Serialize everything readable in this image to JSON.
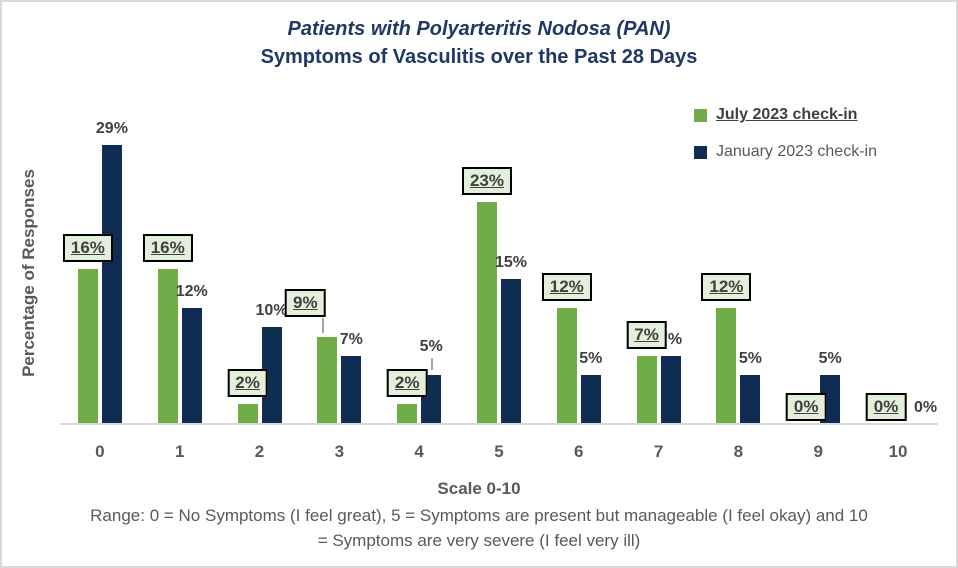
{
  "title": {
    "line1": "Patients with Polyarteritis Nodosa (PAN)",
    "line2": "Symptoms of Vasculitis over the Past 28 Days"
  },
  "legend": {
    "items": [
      {
        "label": "July 2023 check-in",
        "color": "#70AD47",
        "underlined": true
      },
      {
        "label": "January 2023 check-in",
        "color": "#0F2D52",
        "underlined": false
      }
    ]
  },
  "colors": {
    "title_navy": "#1F3864",
    "july_green": "#70AD47",
    "january_navy": "#0F2D52",
    "label_box_fill": "#E2EFDA",
    "label_box_border": "#000000",
    "data_label_text": "#404040",
    "axis_text": "#595959",
    "baseline_gray": "#D9D9D9"
  },
  "chart_data": {
    "type": "bar",
    "title": "Patients with Polyarteritis Nodosa (PAN) Symptoms of Vasculitis over the Past 28 Days",
    "categories": [
      "0",
      "1",
      "2",
      "3",
      "4",
      "5",
      "6",
      "7",
      "8",
      "9",
      "10"
    ],
    "series": [
      {
        "name": "July 2023 check-in",
        "color": "#70AD47",
        "label_style": "boxed-underlined",
        "values": [
          16,
          16,
          2,
          9,
          2,
          23,
          12,
          7,
          12,
          0,
          0
        ]
      },
      {
        "name": "January 2023 check-in",
        "color": "#0F2D52",
        "label_style": "plain",
        "values": [
          29,
          12,
          10,
          7,
          5,
          15,
          5,
          7,
          5,
          5,
          0
        ]
      }
    ],
    "value_suffix": "%",
    "xlabel": "Scale 0-10",
    "ylabel": "Percentage of Responses",
    "ylim": [
      0,
      30
    ],
    "grid": false,
    "legend_position": "top-right",
    "label_leader_lines": {
      "july": [
        3
      ],
      "january": [
        4
      ]
    }
  },
  "footer": {
    "xlabel": "Scale 0-10",
    "range_note": "Range: 0 = No Symptoms (I feel great), 5 = Symptoms are present but manageable (I feel okay) and 10 = Symptoms are very severe (I feel very ill)"
  }
}
